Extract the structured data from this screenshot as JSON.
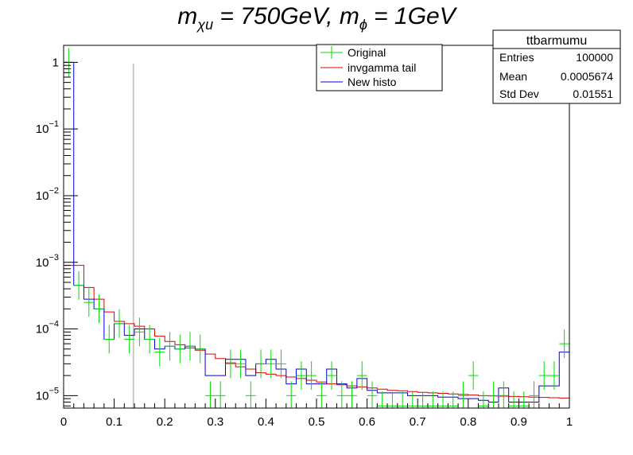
{
  "title": {
    "m_symbol": "m",
    "m_sub_1": "χu",
    "eq_1": " = 750",
    "unit_1": "GeV",
    "sep": ", ",
    "m_sub_2": "ϕ",
    "eq_2": " = 1",
    "unit_2": "GeV"
  },
  "legend": {
    "entries": [
      {
        "label": "Original",
        "color": "#00dd00",
        "style": "marker"
      },
      {
        "label": "invgamma tail",
        "color": "#dd0000",
        "style": "line"
      },
      {
        "label": "New histo",
        "color": "#0000dd",
        "style": "line"
      }
    ]
  },
  "stats": {
    "name": "ttbarmumu",
    "rows": [
      {
        "label": "Entries",
        "value": "100000"
      },
      {
        "label": "Mean",
        "value": "0.0005674"
      },
      {
        "label": "Std Dev",
        "value": "0.01551"
      }
    ]
  },
  "chart_data": {
    "type": "line",
    "xlim": [
      0,
      1
    ],
    "ylim": [
      6.5e-06,
      1.8
    ],
    "log_y": true,
    "x_ticks": [
      "0",
      "0.1",
      "0.2",
      "0.3",
      "0.4",
      "0.5",
      "0.6",
      "0.7",
      "0.8",
      "0.9",
      "1"
    ],
    "y_ticks": [
      {
        "base": "10",
        "exp": "−5"
      },
      {
        "base": "10",
        "exp": "−4"
      },
      {
        "base": "10",
        "exp": "−3"
      },
      {
        "base": "10",
        "exp": "−2"
      },
      {
        "base": "10",
        "exp": "−1"
      },
      {
        "base": "1",
        "exp": ""
      }
    ],
    "cut_line_x": 0.138,
    "bin_width": 0.02,
    "series": [
      {
        "name": "Original",
        "color": "#00dd00",
        "style": "points",
        "values": [
          1.0,
          0.00045,
          0.00025,
          0.0002,
          7e-05,
          0.00012,
          7e-05,
          9e-05,
          7e-05,
          4.5e-05,
          5.5e-05,
          5e-05,
          5.5e-05,
          5e-05,
          1e-05,
          1e-05,
          3e-05,
          3e-05,
          1e-05,
          3e-05,
          3e-05,
          3e-05,
          1e-05,
          2e-05,
          2e-05,
          1e-05,
          2e-05,
          1e-05,
          1e-05,
          2e-05,
          1e-05,
          7e-06,
          7e-06,
          7e-06,
          7e-06,
          7e-06,
          7e-06,
          7e-06,
          7e-06,
          1e-05,
          2e-05,
          7e-06,
          1e-05,
          1e-05,
          7e-06,
          7e-06,
          1e-05,
          2e-05,
          2e-05,
          6e-05
        ]
      },
      {
        "name": "invgamma tail",
        "color": "#dd0000",
        "style": "step",
        "values": [
          0.0009,
          0.0009,
          0.00042,
          0.00028,
          0.00018,
          0.00013,
          0.00012,
          0.00011,
          0.0001,
          7.8e-05,
          6.5e-05,
          5.8e-05,
          5.2e-05,
          4.8e-05,
          4.2e-05,
          3.6e-05,
          3.1e-05,
          2.7e-05,
          2.5e-05,
          2.2e-05,
          2.1e-05,
          2e-05,
          1.9e-05,
          1.8e-05,
          1.7e-05,
          1.6e-05,
          1.5e-05,
          1.45e-05,
          1.4e-05,
          1.35e-05,
          1.3e-05,
          1.25e-05,
          1.2e-05,
          1.18e-05,
          1.15e-05,
          1.12e-05,
          1.1e-05,
          1.08e-05,
          1.06e-05,
          1.04e-05,
          1.02e-05,
          1e-05,
          9.9e-06,
          9.8e-06,
          9.7e-06,
          9.6e-06,
          9.5e-06,
          9.4e-06,
          9.3e-06,
          9.2e-06
        ]
      },
      {
        "name": "New histo",
        "color": "#0000dd",
        "style": "step",
        "values": [
          1.0,
          0.00045,
          0.00028,
          0.0002,
          7e-05,
          0.00012,
          8e-05,
          0.0001,
          7e-05,
          5e-05,
          5.5e-05,
          5e-05,
          5.5e-05,
          5e-05,
          2e-05,
          2e-05,
          3.5e-05,
          3.5e-05,
          2e-05,
          3e-05,
          3.5e-05,
          2.5e-05,
          1.5e-05,
          2.5e-05,
          1.5e-05,
          1.5e-05,
          2.5e-05,
          1.5e-05,
          1.3e-05,
          1.8e-05,
          1.2e-05,
          1.1e-05,
          1.1e-05,
          1.1e-05,
          1e-05,
          1e-05,
          1e-05,
          9.5e-06,
          9.5e-06,
          9e-06,
          9e-06,
          8.5e-06,
          8e-06,
          1.3e-05,
          8e-06,
          8e-06,
          8e-06,
          1.4e-05,
          1.4e-05,
          4.5e-05
        ]
      }
    ]
  }
}
